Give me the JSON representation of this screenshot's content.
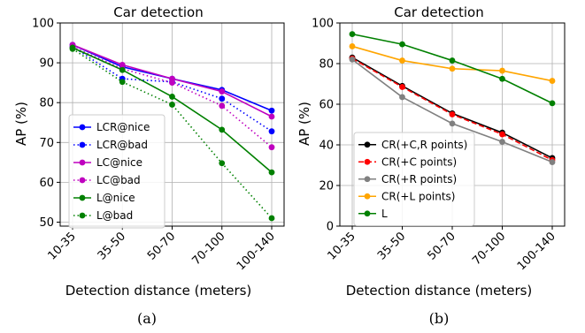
{
  "figure": {
    "captions": [
      "(a)",
      "(b)"
    ]
  },
  "chart_data": [
    {
      "type": "line",
      "title": "Car detection",
      "xlabel": "Detection distance (meters)",
      "ylabel": "AP (%)",
      "categories": [
        "10-35",
        "35-50",
        "50-70",
        "70-100",
        "100-140"
      ],
      "ylim": [
        49,
        100
      ],
      "yticks": [
        50,
        60,
        70,
        80,
        90,
        100
      ],
      "grid": true,
      "legend": "lower-left",
      "series": [
        {
          "name": "LCR@nice",
          "color": "#0000ff",
          "style": "solid",
          "values": [
            94.5,
            89.0,
            86.0,
            83.2,
            78.0
          ]
        },
        {
          "name": "LCR@bad",
          "color": "#0000ff",
          "style": "dotted",
          "values": [
            94.0,
            86.0,
            85.2,
            81.0,
            72.8
          ]
        },
        {
          "name": "LC@nice",
          "color": "#bf00bf",
          "style": "solid",
          "values": [
            94.5,
            89.5,
            86.0,
            82.8,
            76.5
          ]
        },
        {
          "name": "LC@bad",
          "color": "#bf00bf",
          "style": "dotted",
          "values": [
            94.0,
            88.5,
            85.0,
            79.2,
            68.8
          ]
        },
        {
          "name": "L@nice",
          "color": "#008000",
          "style": "solid",
          "values": [
            93.8,
            88.2,
            81.5,
            73.2,
            62.5
          ]
        },
        {
          "name": "L@bad",
          "color": "#008000",
          "style": "dotted",
          "values": [
            93.5,
            85.2,
            79.5,
            64.8,
            51.0
          ]
        }
      ]
    },
    {
      "type": "line",
      "title": "Car detection",
      "xlabel": "Detection distance (meters)",
      "ylabel": "AP (%)",
      "categories": [
        "10-35",
        "35-50",
        "50-70",
        "70-100",
        "100-140"
      ],
      "ylim": [
        0,
        100
      ],
      "yticks": [
        0,
        20,
        40,
        60,
        80,
        100
      ],
      "grid": true,
      "legend": "lower-left",
      "series": [
        {
          "name": "CR(+C,R points)",
          "color": "#000000",
          "style": "solid",
          "values": [
            83.0,
            69.0,
            55.5,
            46.0,
            33.5
          ]
        },
        {
          "name": "CR(+C points)",
          "color": "#ff0000",
          "style": "dashed",
          "values": [
            82.5,
            68.5,
            55.0,
            45.2,
            32.5
          ]
        },
        {
          "name": "CR(+R points)",
          "color": "#808080",
          "style": "solid",
          "values": [
            82.0,
            63.5,
            50.5,
            41.5,
            31.5
          ]
        },
        {
          "name": "CR(+L points)",
          "color": "#ffa500",
          "style": "solid",
          "values": [
            88.5,
            81.5,
            77.5,
            76.5,
            71.5
          ]
        },
        {
          "name": "L",
          "color": "#008000",
          "style": "solid",
          "values": [
            94.5,
            89.5,
            81.5,
            72.5,
            60.5
          ]
        }
      ]
    }
  ]
}
